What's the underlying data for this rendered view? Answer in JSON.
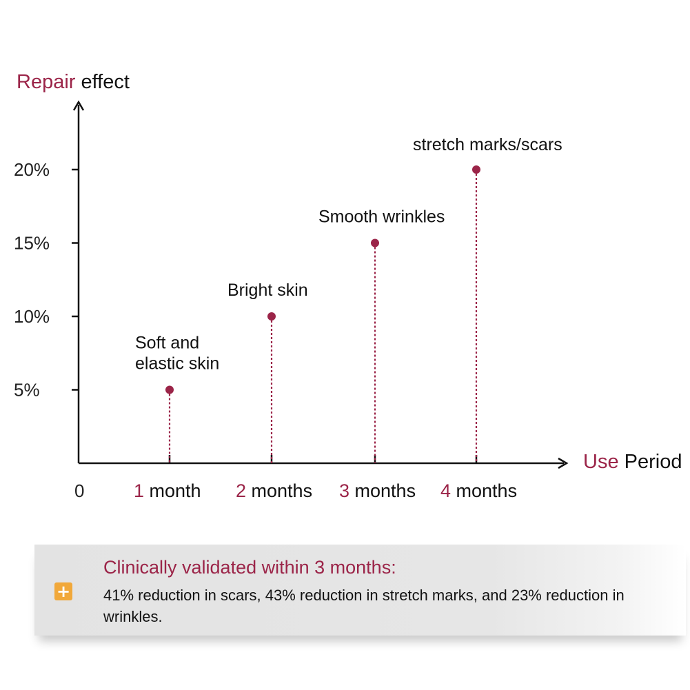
{
  "chart_data": {
    "type": "scatter",
    "y_title": {
      "accent": "Repair",
      "rest": " effect"
    },
    "x_title": {
      "accent": "Use",
      "rest": " Period"
    },
    "origin_label": "0",
    "y_ticks": [
      "5%",
      "10%",
      "15%",
      "20%"
    ],
    "y_tick_values": [
      5,
      10,
      15,
      20
    ],
    "ylim": [
      0,
      24
    ],
    "categories": [
      {
        "num": "1",
        "unit": " month"
      },
      {
        "num": "2",
        "unit": " months"
      },
      {
        "num": "3",
        "unit": " months"
      },
      {
        "num": "4",
        "unit": " months"
      }
    ],
    "values": [
      5,
      10,
      15,
      20
    ],
    "annotations": [
      [
        "Soft and",
        "elastic skin"
      ],
      [
        "Bright skin"
      ],
      [
        "Smooth wrinkles"
      ],
      [
        "stretch marks/scars"
      ]
    ],
    "grid": false,
    "marker_color": "#9b2448",
    "accent_color": "#9b2448"
  },
  "panel": {
    "icon": "plus-icon",
    "icon_glyph": "+",
    "heading": "Clinically validated within 3 months:",
    "body": "41% reduction in scars, 43% reduction in stretch marks, and 23% reduction in wrinkles."
  }
}
